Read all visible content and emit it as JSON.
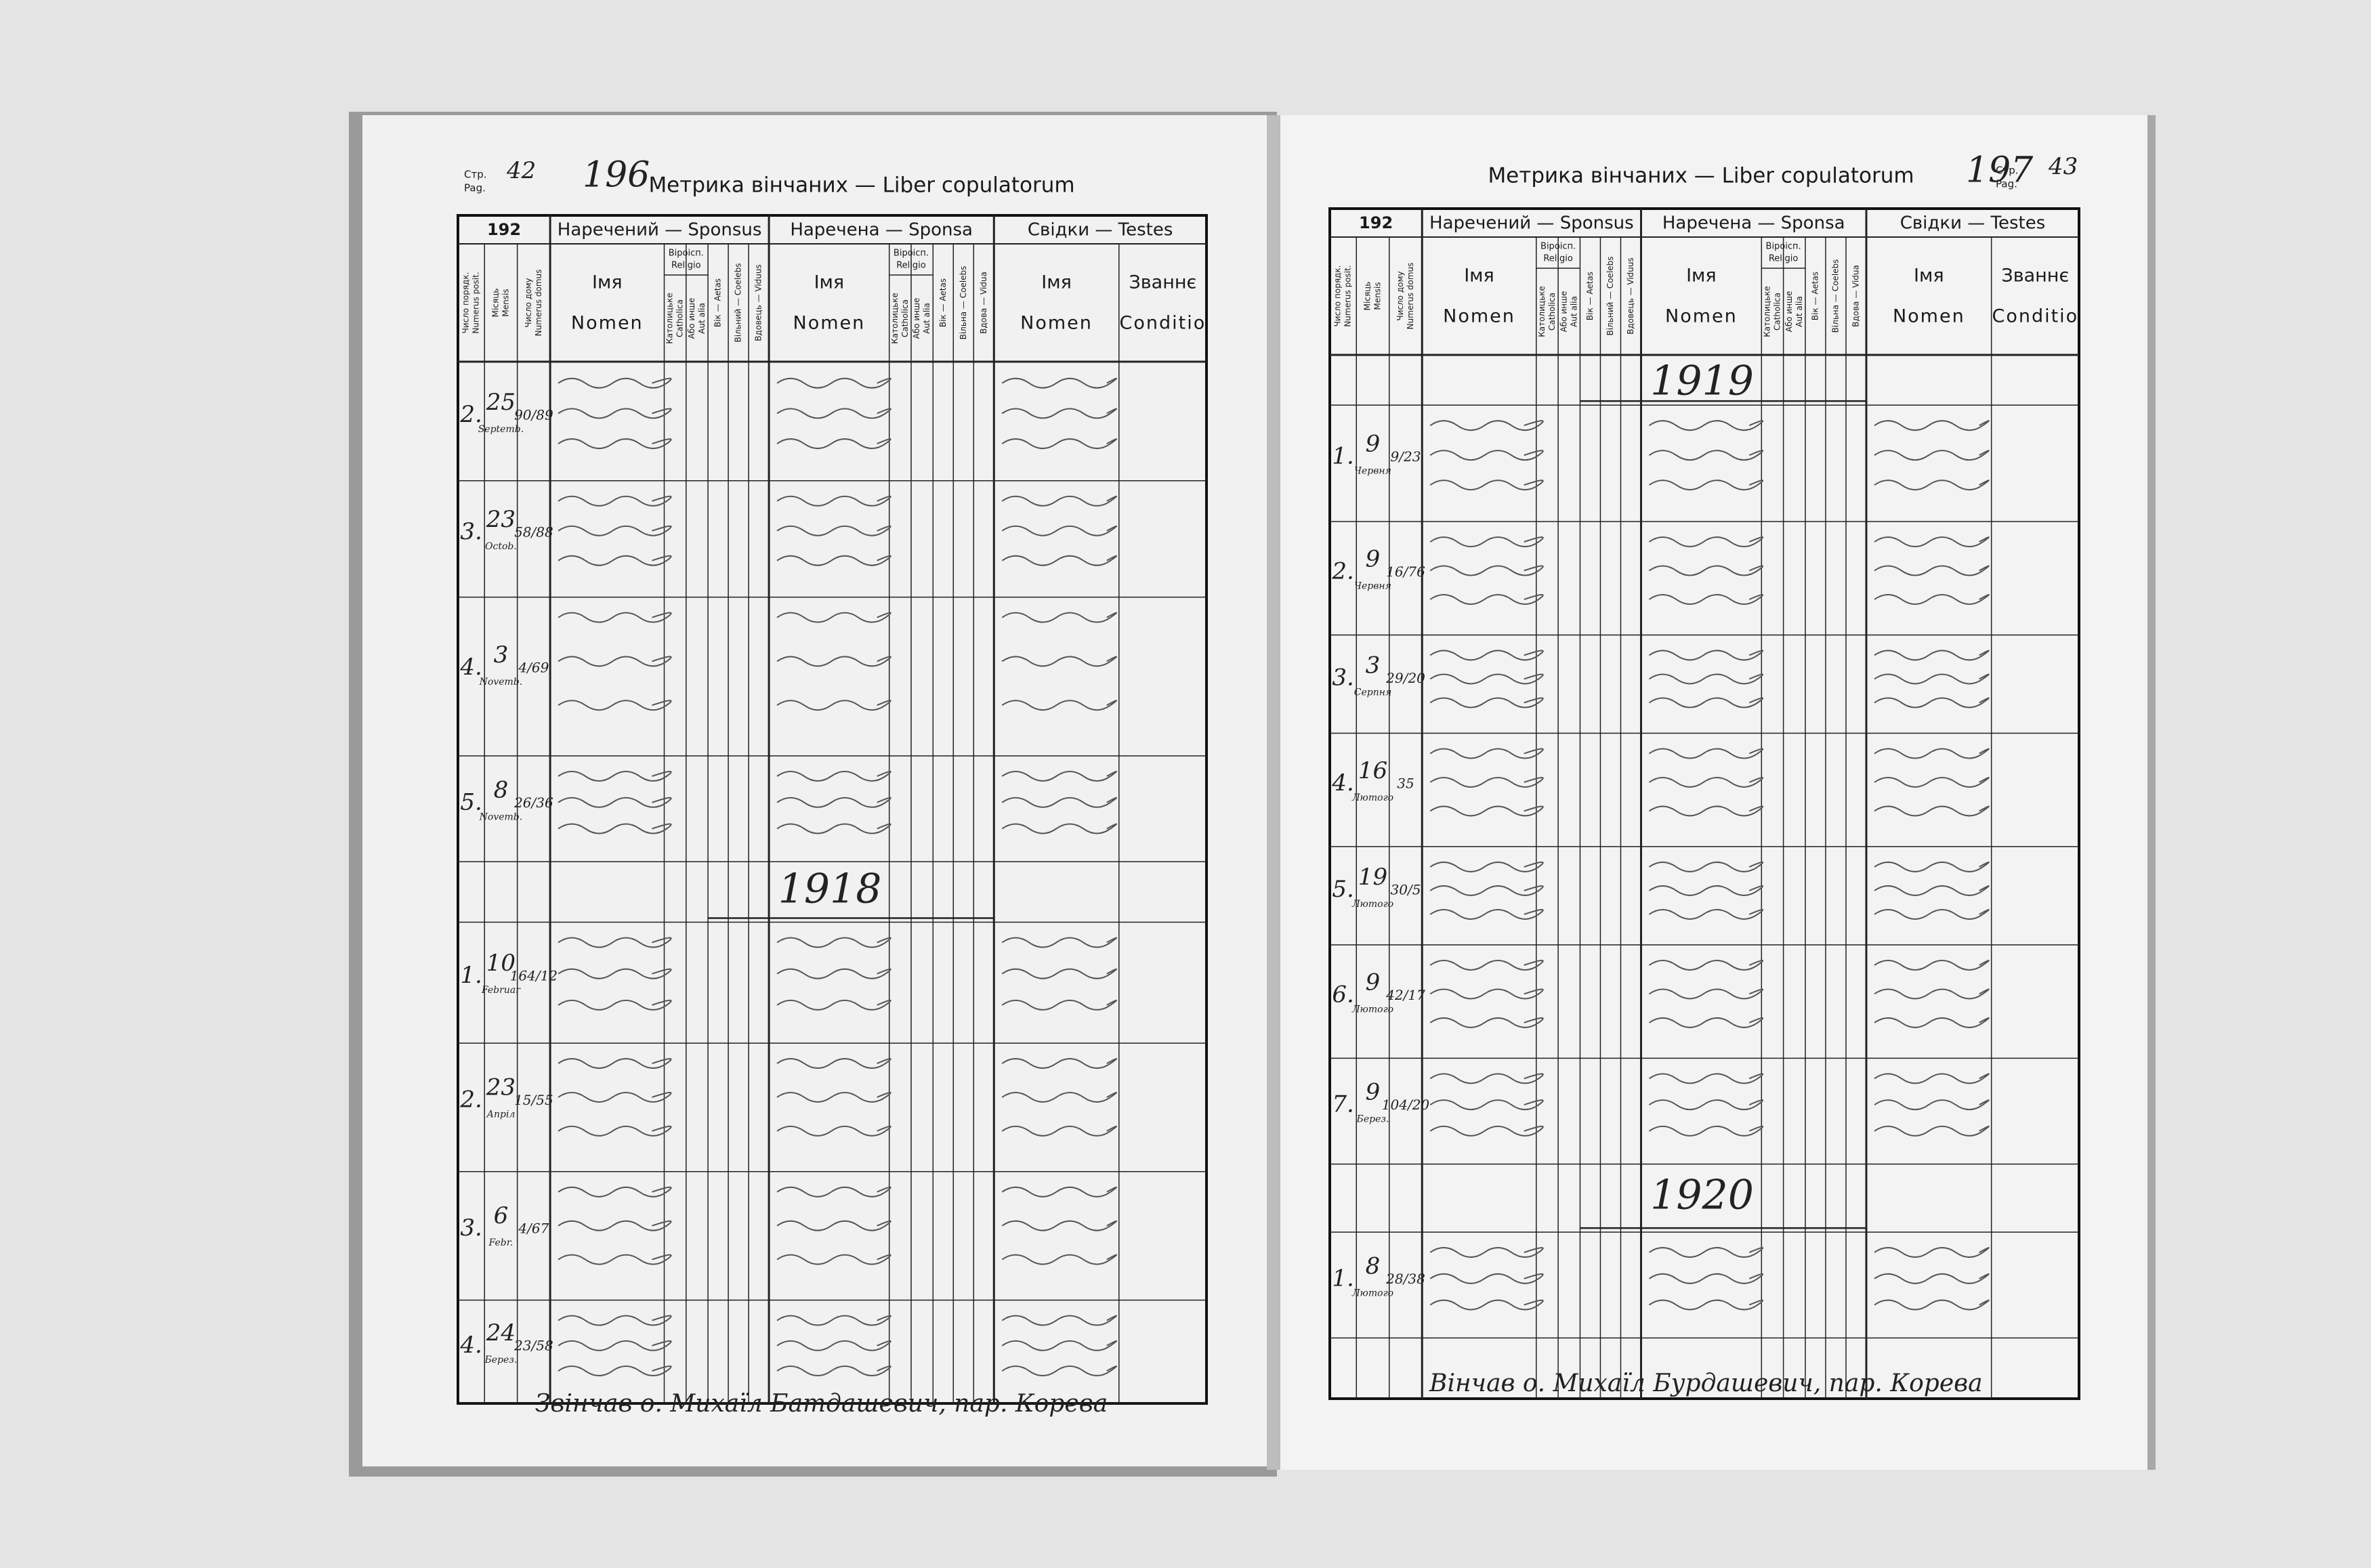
{
  "table_header": {
    "year_prefix": "192",
    "title": "Метрика вінчаних — Liber copulatorum",
    "page_label": [
      "Стр.",
      "Pag."
    ],
    "sponsus": "Наречений — Sponsus",
    "sponsa": "Наречена — Sponsa",
    "testes": "Свідки — Testes",
    "religio": [
      "Віроісп.",
      "Religio"
    ],
    "nomen": [
      "Імя",
      "Nomen"
    ],
    "conditio": [
      "Званнє",
      "Conditio"
    ],
    "vertical": {
      "numerus": [
        "Число порядк.",
        "Numerus posit."
      ],
      "mensis": [
        "Місяць",
        "Mensis"
      ],
      "domus": [
        "Число дому",
        "Numerus domus"
      ],
      "catholica": [
        "Католицьке",
        "Catholica"
      ],
      "alia": [
        "Або инше",
        "Aut alia"
      ],
      "aetas": [
        "Вік — Aetas"
      ],
      "coelebs_m": [
        "Вільний — Coelebs"
      ],
      "viduus": [
        "Вдовець — Viduus"
      ],
      "coelebs_f": [
        "Вільна — Coelebs"
      ],
      "vidua": [
        "Вдова — Vidua"
      ]
    }
  },
  "pages": [
    {
      "page_number": "42",
      "folio": "196",
      "entries": [
        {
          "num": "2.",
          "day": "25",
          "month": "Septemb.",
          "house": "90/89"
        },
        {
          "num": "3.",
          "day": "23",
          "month": "Octob.",
          "house": "58/88"
        },
        {
          "num": "4.",
          "day": "3",
          "month": "Novemb.",
          "house": "4/69"
        },
        {
          "num": "5.",
          "day": "8",
          "month": "Novemb.",
          "house": "26/36"
        },
        {
          "year": "1918"
        },
        {
          "num": "1.",
          "day": "10",
          "month": "Februar",
          "house": "164/12"
        },
        {
          "num": "2.",
          "day": "23",
          "month": "Апріл",
          "house": "15/55"
        },
        {
          "num": "3.",
          "day": "6",
          "month": "Febr.",
          "house": "4/67"
        },
        {
          "num": "4.",
          "day": "24",
          "month": "Берез.",
          "house": "23/58"
        }
      ],
      "signature": "Звінчав о. Михаїл Батдашевич, пар. Корева"
    },
    {
      "page_number": "43",
      "folio": "197",
      "entries": [
        {
          "year": "1919"
        },
        {
          "num": "1.",
          "day": "9",
          "month": "Червня",
          "house": "9/23"
        },
        {
          "num": "2.",
          "day": "9",
          "month": "Червня",
          "house": "16/76"
        },
        {
          "num": "3.",
          "day": "3",
          "month": "Серпня",
          "house": "29/20"
        },
        {
          "num": "4.",
          "day": "16",
          "month": "Лютого",
          "house": "35"
        },
        {
          "num": "5.",
          "day": "19",
          "month": "Лютого",
          "house": "30/5"
        },
        {
          "num": "6.",
          "day": "9",
          "month": "Лютого",
          "house": "42/17"
        },
        {
          "num": "7.",
          "day": "9",
          "month": "Берез.",
          "house": "104/20"
        },
        {
          "year": "1920"
        },
        {
          "num": "1.",
          "day": "8",
          "month": "Лютого",
          "house": "28/38"
        }
      ],
      "signature": "Вінчав о. Михаїл Бурдашевич, пар. Корева"
    }
  ]
}
